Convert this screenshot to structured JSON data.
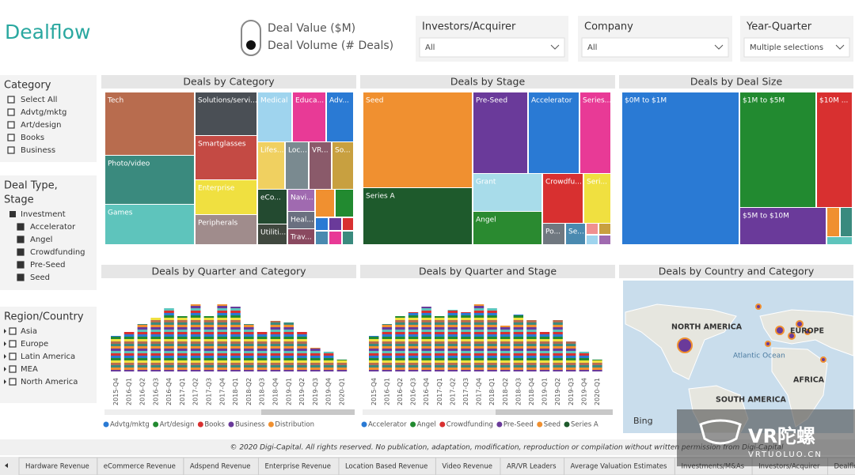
{
  "header": {
    "title": "Dealflow",
    "toggle": [
      "Deal Value ($M)",
      "Deal Volume (# Deals)"
    ]
  },
  "filters": [
    {
      "label": "Investors/Acquirer",
      "value": "All"
    },
    {
      "label": "Company",
      "value": "All"
    },
    {
      "label": "Year-Quarter",
      "value": "Multiple selections"
    }
  ],
  "slicers": {
    "category": {
      "title": [
        "Category"
      ],
      "items": [
        "Select All",
        "Advtg/mktg",
        "Art/design",
        "Books",
        "Business"
      ]
    },
    "deal_type": {
      "title": [
        "Deal Type,",
        "Stage"
      ],
      "parent": "Investment",
      "items": [
        "Accelerator",
        "Angel",
        "Crowdfunding",
        "Pre-Seed",
        "Seed"
      ]
    },
    "region": {
      "title": [
        "Region/Country"
      ],
      "items": [
        "Asia",
        "Europe",
        "Latin America",
        "MEA",
        "North America"
      ]
    }
  },
  "treemaps": [
    {
      "title": "Deals by Category",
      "tiles": [
        "Tech",
        "Photo/video",
        "Games",
        "Solutions/servi...",
        "Smartglasses",
        "Enterprise",
        "Peripherals",
        "Medical",
        "Educa...",
        "Adv...",
        "Lifes...",
        "Loc...",
        "VR...",
        "So...",
        "eCo...",
        "Utiliti...",
        "Navi...",
        "Heal...",
        "Trav..."
      ]
    },
    {
      "title": "Deals by Stage",
      "tiles": [
        "Seed",
        "Series A",
        "Pre-Seed",
        "Accelerator",
        "Series...",
        "Grant",
        "Crowdfu...",
        "Seri...",
        "Angel",
        "Po...",
        "Se..."
      ]
    },
    {
      "title": "Deals by Deal Size",
      "tiles": [
        "$0M to $1M",
        "$1M to $5M",
        "$10M ...",
        "$5M to $10M"
      ]
    }
  ],
  "bar_charts": [
    {
      "title": "Deals by Quarter and Category",
      "quarters": [
        "2015-Q4",
        "2016-Q1",
        "2016-Q2",
        "2016-Q3",
        "2016-Q4",
        "2017-Q1",
        "2017-Q2",
        "2017-Q3",
        "2017-Q4",
        "2018-Q1",
        "2018-Q2",
        "2018-Q3",
        "2018-Q4",
        "2019-Q1",
        "2019-Q2",
        "2019-Q3",
        "2019-Q4",
        "2020-Q1"
      ],
      "values": [
        45,
        50,
        60,
        68,
        80,
        70,
        85,
        70,
        85,
        82,
        60,
        50,
        64,
        62,
        50,
        30,
        25,
        15
      ],
      "legend": [
        {
          "name": "Advtg/mktg",
          "color": "#2a7ad4"
        },
        {
          "name": "Art/design",
          "color": "#228a30"
        },
        {
          "name": "Books",
          "color": "#d83030"
        },
        {
          "name": "Business",
          "color": "#6a3a9a"
        },
        {
          "name": "Distribution",
          "color": "#f09030"
        }
      ]
    },
    {
      "title": "Deals by Quarter and Stage",
      "quarters": [
        "2015-Q4",
        "2016-Q1",
        "2016-Q2",
        "2016-Q3",
        "2016-Q4",
        "2017-Q1",
        "2017-Q2",
        "2017-Q3",
        "2017-Q4",
        "2018-Q1",
        "2018-Q2",
        "2018-Q3",
        "2018-Q4",
        "2019-Q1",
        "2019-Q2",
        "2019-Q3",
        "2019-Q4",
        "2020-Q1"
      ],
      "values": [
        45,
        60,
        70,
        75,
        82,
        70,
        78,
        75,
        85,
        80,
        58,
        72,
        65,
        50,
        65,
        38,
        25,
        15
      ],
      "legend": [
        {
          "name": "Accelerator",
          "color": "#2a7ad4"
        },
        {
          "name": "Angel",
          "color": "#228a30"
        },
        {
          "name": "Crowdfunding",
          "color": "#d83030"
        },
        {
          "name": "Pre-Seed",
          "color": "#6a3a9a"
        },
        {
          "name": "Seed",
          "color": "#f09030"
        },
        {
          "name": "Series A",
          "color": "#1e5a2c"
        }
      ]
    }
  ],
  "map": {
    "title": "Deals by Country and Category",
    "labels": [
      "NORTH AMERICA",
      "Atlantic Ocean",
      "EUROPE",
      "AFRICA",
      "SOUTH AMERICA"
    ],
    "credit": "Bing"
  },
  "footer": "© 2020 Digi-Capital. All rights reserved. No publication, adaptation, modification, reproduction or compilation without written permission from Digi-Capital",
  "tabs": [
    "Hardware Revenue",
    "eCommerce Revenue",
    "Adspend Revenue",
    "Enterprise Revenue",
    "Location Based Revenue",
    "Video Revenue",
    "AR/VR Leaders",
    "Average Valuation Estimates",
    "Investments/M&As",
    "Investors/Acquirer",
    "Dealflo"
  ],
  "watermark": {
    "logo": "VR陀螺",
    "url": "VRTUOLUO.CN"
  }
}
